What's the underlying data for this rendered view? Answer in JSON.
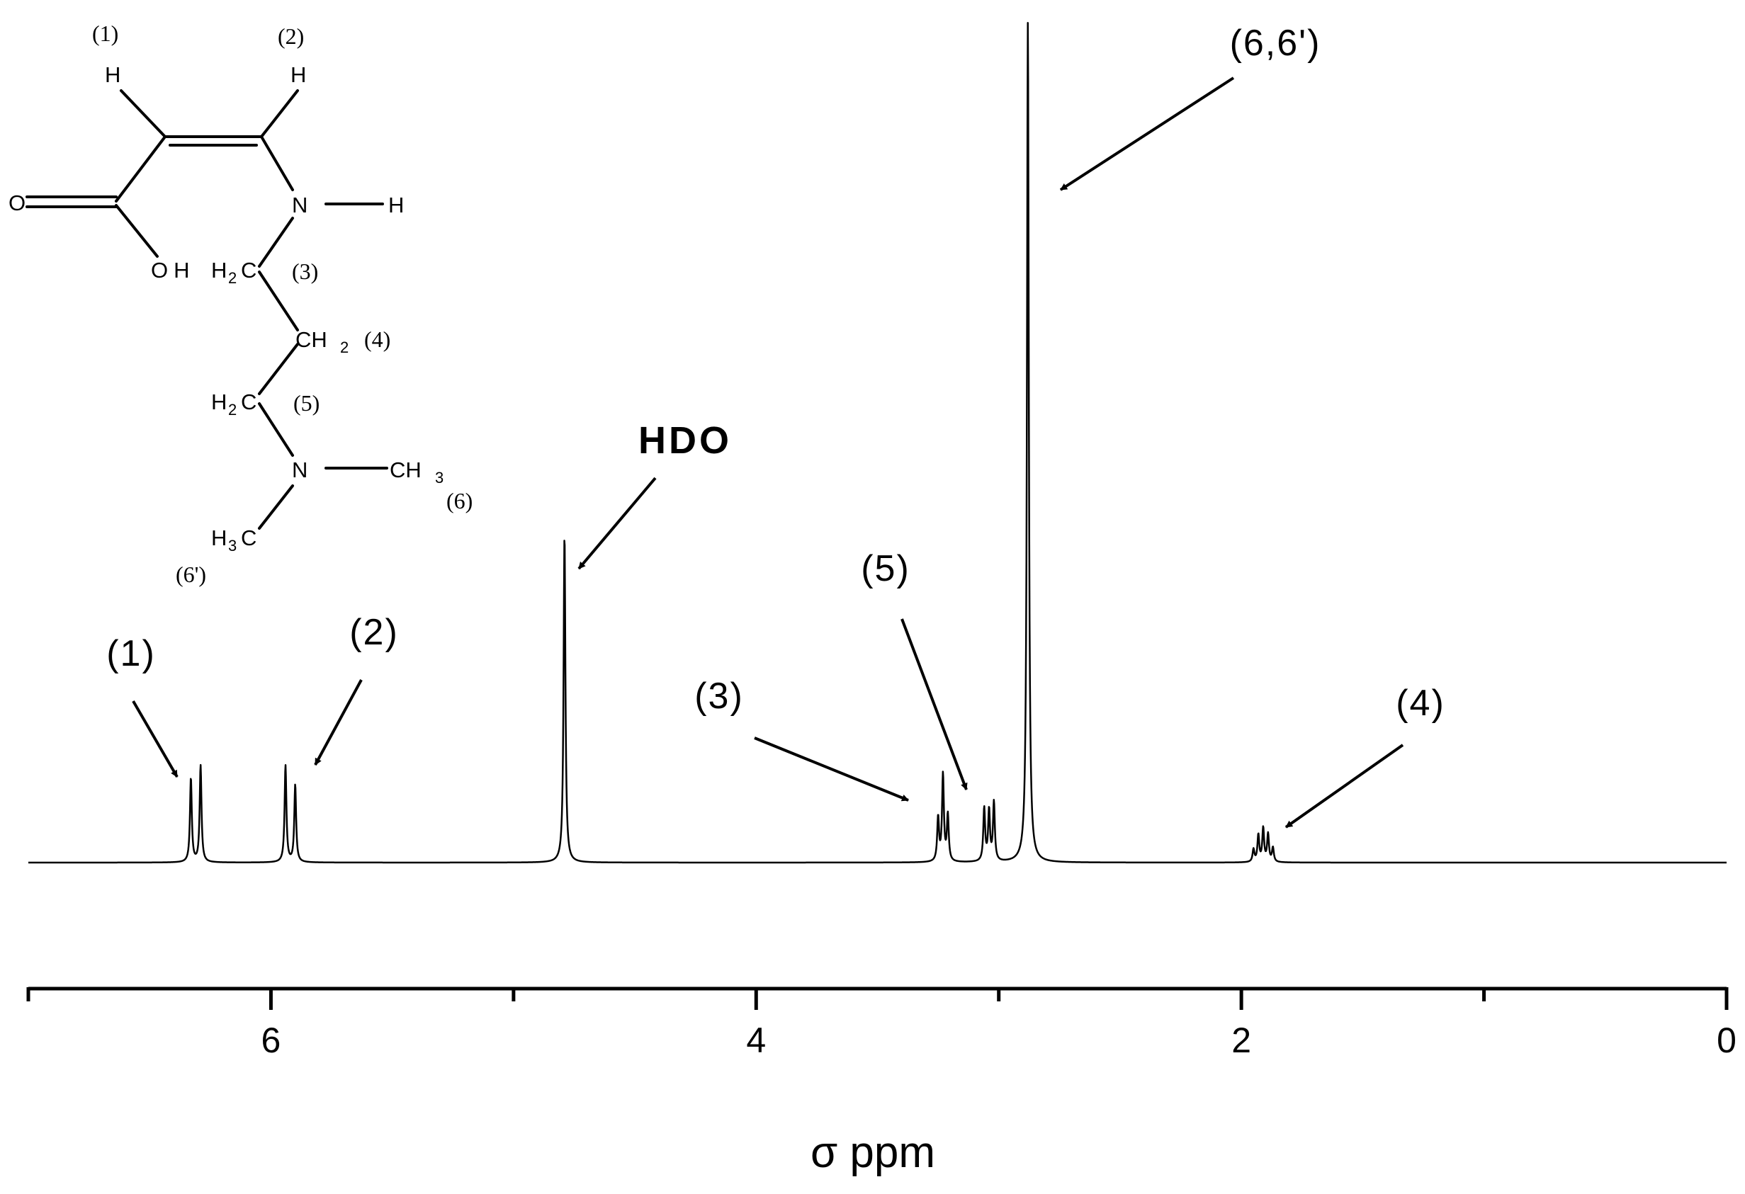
{
  "chart_data": {
    "type": "line",
    "title": "",
    "xlabel": "σ ppm",
    "xlabel_symbol": "σ",
    "xlabel_unit": "ppm",
    "ylabel": "",
    "xlim": [
      7.0,
      0.0
    ],
    "x_reversed": true,
    "x_major_ticks": [
      6,
      4,
      2,
      0
    ],
    "x_tick_labels": [
      "6",
      "4",
      "2",
      "0"
    ],
    "x_minor_ticks": [
      7,
      5,
      3,
      1
    ],
    "y_axis_visible": false,
    "grid": false,
    "legend": "none",
    "line_color": "#000000",
    "ylim": [
      0,
      1.0
    ],
    "series": [
      {
        "peaks": [
          {
            "ppm": 6.33,
            "height": 0.1
          },
          {
            "ppm": 6.29,
            "height": 0.115
          },
          {
            "ppm": 5.94,
            "height": 0.115
          },
          {
            "ppm": 5.9,
            "height": 0.092
          },
          {
            "ppm": 4.79,
            "height": 0.39
          },
          {
            "ppm": 3.25,
            "height": 0.052
          },
          {
            "ppm": 3.23,
            "height": 0.103
          },
          {
            "ppm": 3.21,
            "height": 0.055
          },
          {
            "ppm": 3.06,
            "height": 0.063
          },
          {
            "ppm": 3.04,
            "height": 0.06
          },
          {
            "ppm": 3.02,
            "height": 0.07
          },
          {
            "ppm": 2.88,
            "height": 1.0
          },
          {
            "ppm": 1.95,
            "height": 0.015
          },
          {
            "ppm": 1.93,
            "height": 0.032
          },
          {
            "ppm": 1.91,
            "height": 0.04
          },
          {
            "ppm": 1.89,
            "height": 0.033
          },
          {
            "ppm": 1.87,
            "height": 0.017
          }
        ]
      }
    ],
    "annotations": [
      {
        "text": "(1)",
        "target_ppm": 6.33,
        "target_height": 0.105
      },
      {
        "text": "(2)",
        "target_ppm": 5.9,
        "target_height": 0.118
      },
      {
        "text": "HDO",
        "bold": true,
        "target_ppm": 4.79,
        "target_height": 0.35
      },
      {
        "text": "(3)",
        "target_ppm": 3.24,
        "target_height": 0.075
      },
      {
        "text": "(5)",
        "target_ppm": 3.06,
        "target_height": 0.09
      },
      {
        "text": "(6,6')",
        "target_ppm": 2.86,
        "target_height": 0.8
      },
      {
        "text": "(4)",
        "target_ppm": 1.9,
        "target_height": 0.045
      }
    ]
  },
  "structure": {
    "atoms": {
      "h1": "H",
      "h2": "H",
      "o_double": "O",
      "n_amide": "N",
      "h_amide": "H",
      "oh": "OH",
      "ch2_3": [
        "H",
        "2",
        "C"
      ],
      "ch2_4": [
        "CH",
        "2"
      ],
      "ch2_5": [
        "H",
        "2",
        "C"
      ],
      "n_amine": "N",
      "ch3_6": [
        "CH",
        "3"
      ],
      "ch3_6p": [
        "H",
        "3",
        "C"
      ]
    },
    "position_labels": {
      "p1": "(1)",
      "p2": "(2)",
      "p3": "(3)",
      "p4": "(4)",
      "p5": "(5)",
      "p6": "(6)",
      "p6p": "(6')"
    }
  }
}
